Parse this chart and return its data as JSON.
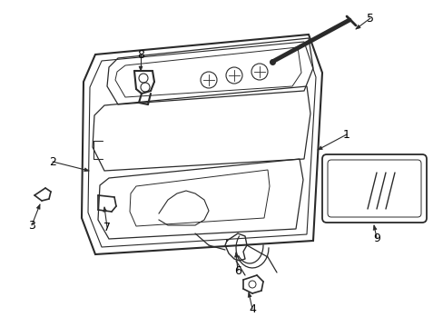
{
  "background_color": "#ffffff",
  "line_color": "#2a2a2a",
  "label_color": "#000000",
  "fig_width": 4.89,
  "fig_height": 3.6,
  "dpi": 100,
  "label_fontsize": 9
}
